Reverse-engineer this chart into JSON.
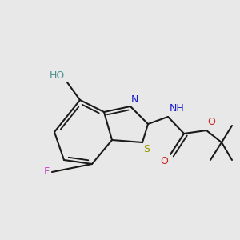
{
  "background_color": "#e8e8e8",
  "bond_color": "#1a1a1a",
  "bond_lw": 1.5,
  "colors": {
    "HO": "#4a9090",
    "F": "#cc44cc",
    "N": "#1a1acc",
    "S": "#999900",
    "NH": "#1a1acc",
    "Od": "#cc2222",
    "Os": "#cc2222"
  },
  "lfs": 9.0
}
